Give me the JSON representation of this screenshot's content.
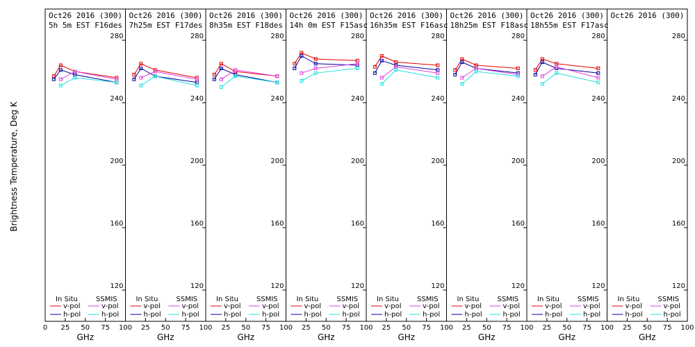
{
  "figure": {
    "ylabel": "Brightness Temperature, Deg K",
    "xlabel": "GHz",
    "legend": {
      "insitu_title": "In Situ",
      "ssmis_title": "SSMIS",
      "vpol": "v-pol",
      "hpol": "h-pol"
    },
    "colors": {
      "insitu_v": "#e00000",
      "insitu_h": "#00009a",
      "ssmis_v": "#e040e0",
      "ssmis_h": "#20e0e0"
    }
  },
  "chart_data": {
    "type": "line",
    "xlim": [
      0,
      100
    ],
    "ylim": [
      100,
      300
    ],
    "xticks": [
      0,
      25,
      50,
      75,
      100
    ],
    "xtick_labels": [
      "0",
      "25",
      "50",
      "75",
      "100"
    ],
    "yticks": [
      120,
      160,
      200,
      240,
      280
    ],
    "ytick_labels": [
      "120",
      "160",
      "200",
      "240",
      "280"
    ],
    "panels": [
      {
        "title1": "Oct26 2016 (300)",
        "title2": "5h 5m EST F16des",
        "series": {
          "insitu_v": [
            [
              10.7,
              257
            ],
            [
              19.3,
              264
            ],
            [
              37,
              260
            ],
            [
              89,
              256
            ]
          ],
          "insitu_h": [
            [
              10.7,
              255
            ],
            [
              19.3,
              261
            ],
            [
              37,
              258
            ],
            [
              89,
              253
            ]
          ],
          "ssmis_v": [
            [
              19.3,
              255
            ],
            [
              37,
              260
            ],
            [
              89,
              255
            ]
          ],
          "ssmis_h": [
            [
              19.3,
              251
            ],
            [
              37,
              256
            ],
            [
              89,
              253
            ]
          ]
        }
      },
      {
        "title1": "Oct26 2016 (300)",
        "title2": "7h25m EST F17des",
        "series": {
          "insitu_v": [
            [
              10.7,
              258
            ],
            [
              19.3,
              265
            ],
            [
              37,
              261
            ],
            [
              89,
              256
            ]
          ],
          "insitu_h": [
            [
              10.7,
              255
            ],
            [
              19.3,
              262
            ],
            [
              37,
              257
            ],
            [
              89,
              253
            ]
          ],
          "ssmis_v": [
            [
              19.3,
              256
            ],
            [
              37,
              260
            ],
            [
              89,
              255
            ]
          ],
          "ssmis_h": [
            [
              19.3,
              251
            ],
            [
              37,
              257
            ],
            [
              89,
              251
            ]
          ]
        }
      },
      {
        "title1": "Oct26 2016 (300)",
        "title2": "8h35m EST F18des",
        "series": {
          "insitu_v": [
            [
              10.7,
              258
            ],
            [
              19.3,
              265
            ],
            [
              37,
              260
            ],
            [
              89,
              257
            ]
          ],
          "insitu_h": [
            [
              10.7,
              255
            ],
            [
              19.3,
              262
            ],
            [
              37,
              258
            ],
            [
              89,
              253
            ]
          ],
          "ssmis_v": [
            [
              19.3,
              255
            ],
            [
              37,
              261
            ],
            [
              89,
              257
            ]
          ],
          "ssmis_h": [
            [
              19.3,
              250
            ],
            [
              37,
              257
            ],
            [
              89,
              253
            ]
          ]
        }
      },
      {
        "title1": "Oct26 2016 (300)",
        "title2": "14h 0m EST F15asc",
        "series": {
          "insitu_v": [
            [
              10.7,
              265
            ],
            [
              19.3,
              272
            ],
            [
              37,
              268
            ],
            [
              89,
              267
            ]
          ],
          "insitu_h": [
            [
              10.7,
              262
            ],
            [
              19.3,
              270
            ],
            [
              37,
              265
            ],
            [
              89,
              264
            ]
          ],
          "ssmis_v": [
            [
              19.3,
              259
            ],
            [
              37,
              262
            ],
            [
              89,
              265
            ]
          ],
          "ssmis_h": [
            [
              19.3,
              254
            ],
            [
              37,
              259
            ],
            [
              89,
              262
            ]
          ]
        }
      },
      {
        "title1": "Oct26 2016 (300)",
        "title2": "16h35m EST F16asc",
        "series": {
          "insitu_v": [
            [
              10.7,
              263
            ],
            [
              19.3,
              270
            ],
            [
              37,
              266
            ],
            [
              89,
              264
            ]
          ],
          "insitu_h": [
            [
              10.7,
              259
            ],
            [
              19.3,
              267
            ],
            [
              37,
              264
            ],
            [
              89,
              261
            ]
          ],
          "ssmis_v": [
            [
              19.3,
              256
            ],
            [
              37,
              263
            ],
            [
              89,
              259
            ]
          ],
          "ssmis_h": [
            [
              19.3,
              252
            ],
            [
              37,
              261
            ],
            [
              89,
              256
            ]
          ]
        }
      },
      {
        "title1": "Oct26 2016 (300)",
        "title2": "18h25m EST F18asc",
        "series": {
          "insitu_v": [
            [
              10.7,
              261
            ],
            [
              19.3,
              268
            ],
            [
              37,
              264
            ],
            [
              89,
              262
            ]
          ],
          "insitu_h": [
            [
              10.7,
              258
            ],
            [
              19.3,
              266
            ],
            [
              37,
              262
            ],
            [
              89,
              259
            ]
          ],
          "ssmis_v": [
            [
              19.3,
              256
            ],
            [
              37,
              262
            ],
            [
              89,
              258
            ]
          ],
          "ssmis_h": [
            [
              19.3,
              252
            ],
            [
              37,
              260
            ],
            [
              89,
              257
            ]
          ]
        }
      },
      {
        "title1": "Oct26 2016 (300)",
        "title2": "18h55m EST F17asc",
        "series": {
          "insitu_v": [
            [
              10.7,
              261
            ],
            [
              19.3,
              268
            ],
            [
              37,
              265
            ],
            [
              89,
              262
            ]
          ],
          "insitu_h": [
            [
              10.7,
              258
            ],
            [
              19.3,
              266
            ],
            [
              37,
              262
            ],
            [
              89,
              259
            ]
          ],
          "ssmis_v": [
            [
              19.3,
              257
            ],
            [
              37,
              263
            ],
            [
              89,
              256
            ]
          ],
          "ssmis_h": [
            [
              19.3,
              252
            ],
            [
              37,
              259
            ],
            [
              89,
              253
            ]
          ]
        }
      },
      {
        "title1": "Oct26 2016 (300)",
        "title2": "",
        "series": {}
      }
    ]
  }
}
